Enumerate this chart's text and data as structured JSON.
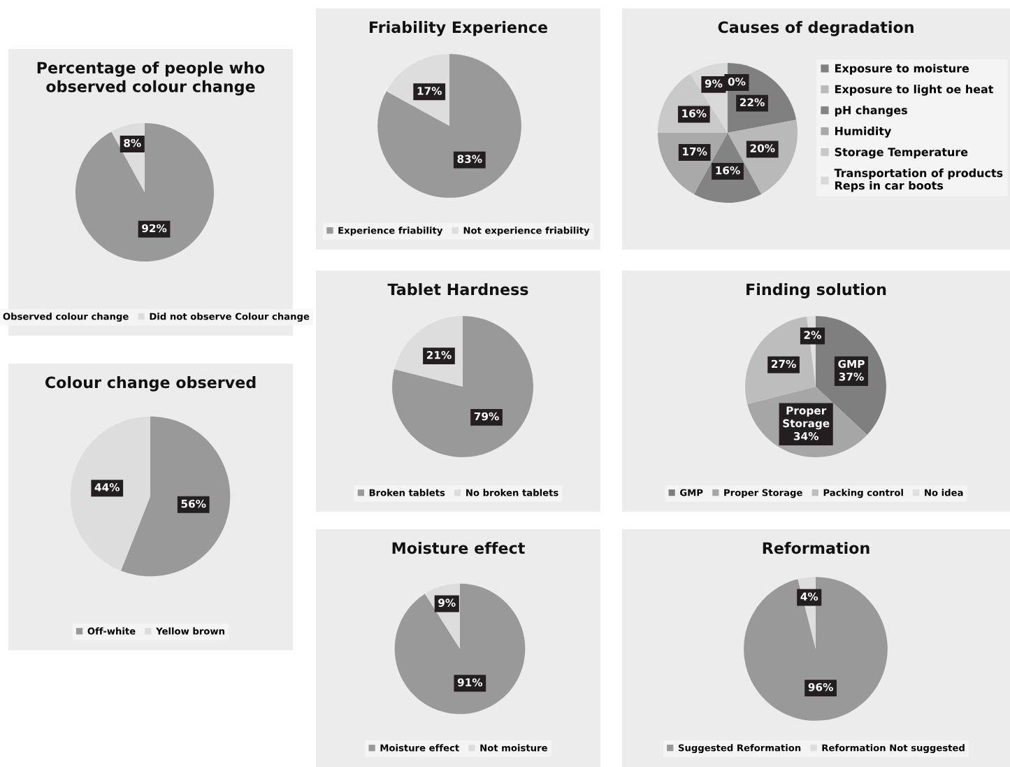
{
  "chart_data": [
    {
      "type": "pie",
      "title": "Percentage of people who\nobserved colour change",
      "categories": [
        "Observed colour change",
        "Did not observe Colour change"
      ],
      "values": [
        92,
        8
      ],
      "colors": [
        "#999999",
        "#dddddd"
      ],
      "value_labels": [
        "92%",
        "8%"
      ],
      "legend": "bottom"
    },
    {
      "type": "pie",
      "title": "Colour change observed",
      "categories": [
        "Off-white",
        "Yellow brown"
      ],
      "values": [
        56,
        44
      ],
      "colors": [
        "#999999",
        "#dddddd"
      ],
      "value_labels": [
        "56%",
        "44%"
      ],
      "legend": "bottom"
    },
    {
      "type": "pie",
      "title": "Friability Experience",
      "categories": [
        "Experience friability",
        "Not experience friability"
      ],
      "values": [
        83,
        17
      ],
      "colors": [
        "#999999",
        "#dddddd"
      ],
      "value_labels": [
        "83%",
        "17%"
      ],
      "legend": "bottom"
    },
    {
      "type": "pie",
      "title": "Tablet Hardness",
      "categories": [
        "Broken tablets",
        "No broken tablets"
      ],
      "values": [
        79,
        21
      ],
      "colors": [
        "#999999",
        "#dddddd"
      ],
      "value_labels": [
        "79%",
        "21%"
      ],
      "legend": "bottom"
    },
    {
      "type": "pie",
      "title": "Moisture effect",
      "categories": [
        "Moisture effect",
        "Not moisture"
      ],
      "values": [
        91,
        9
      ],
      "colors": [
        "#999999",
        "#dddddd"
      ],
      "value_labels": [
        "91%",
        "9%"
      ],
      "legend": "bottom"
    },
    {
      "type": "pie",
      "title": "Causes of degradation",
      "categories": [
        "Exposure to moisture",
        "Exposure to light oe heat",
        "pH changes",
        "Humidity",
        "Storage Temperature",
        "Transportation of products\nReps in car boots",
        null
      ],
      "values": [
        22,
        20,
        16,
        17,
        16,
        9,
        0
      ],
      "colors": [
        "#808080",
        "#b9b9b9",
        "#838383",
        "#a9a9a9",
        "#c9c9c9",
        "#d9d9d9",
        "#e8e8e8"
      ],
      "value_labels": [
        "22%",
        "20%",
        "16%",
        "17%",
        "16%",
        "9%",
        "0%"
      ],
      "legend": "right"
    },
    {
      "type": "pie",
      "title": "Finding solution",
      "categories": [
        "GMP",
        "Proper Storage",
        "Packing control",
        "No idea"
      ],
      "values": [
        37,
        34,
        27,
        2
      ],
      "colors": [
        "#7f7f7f",
        "#a6a6a6",
        "#bdbdbd",
        "#e0e0e0"
      ],
      "value_labels": [
        "GMP\n37%",
        "Proper\nStorage\n34%",
        "27%",
        "2%"
      ],
      "legend": "bottom"
    },
    {
      "type": "pie",
      "title": "Reformation",
      "categories": [
        "Suggested Reformation",
        "Reformation Not suggested"
      ],
      "values": [
        96,
        4
      ],
      "colors": [
        "#999999",
        "#dddddd"
      ],
      "value_labels": [
        "96%",
        "4%"
      ],
      "legend": "bottom"
    }
  ]
}
